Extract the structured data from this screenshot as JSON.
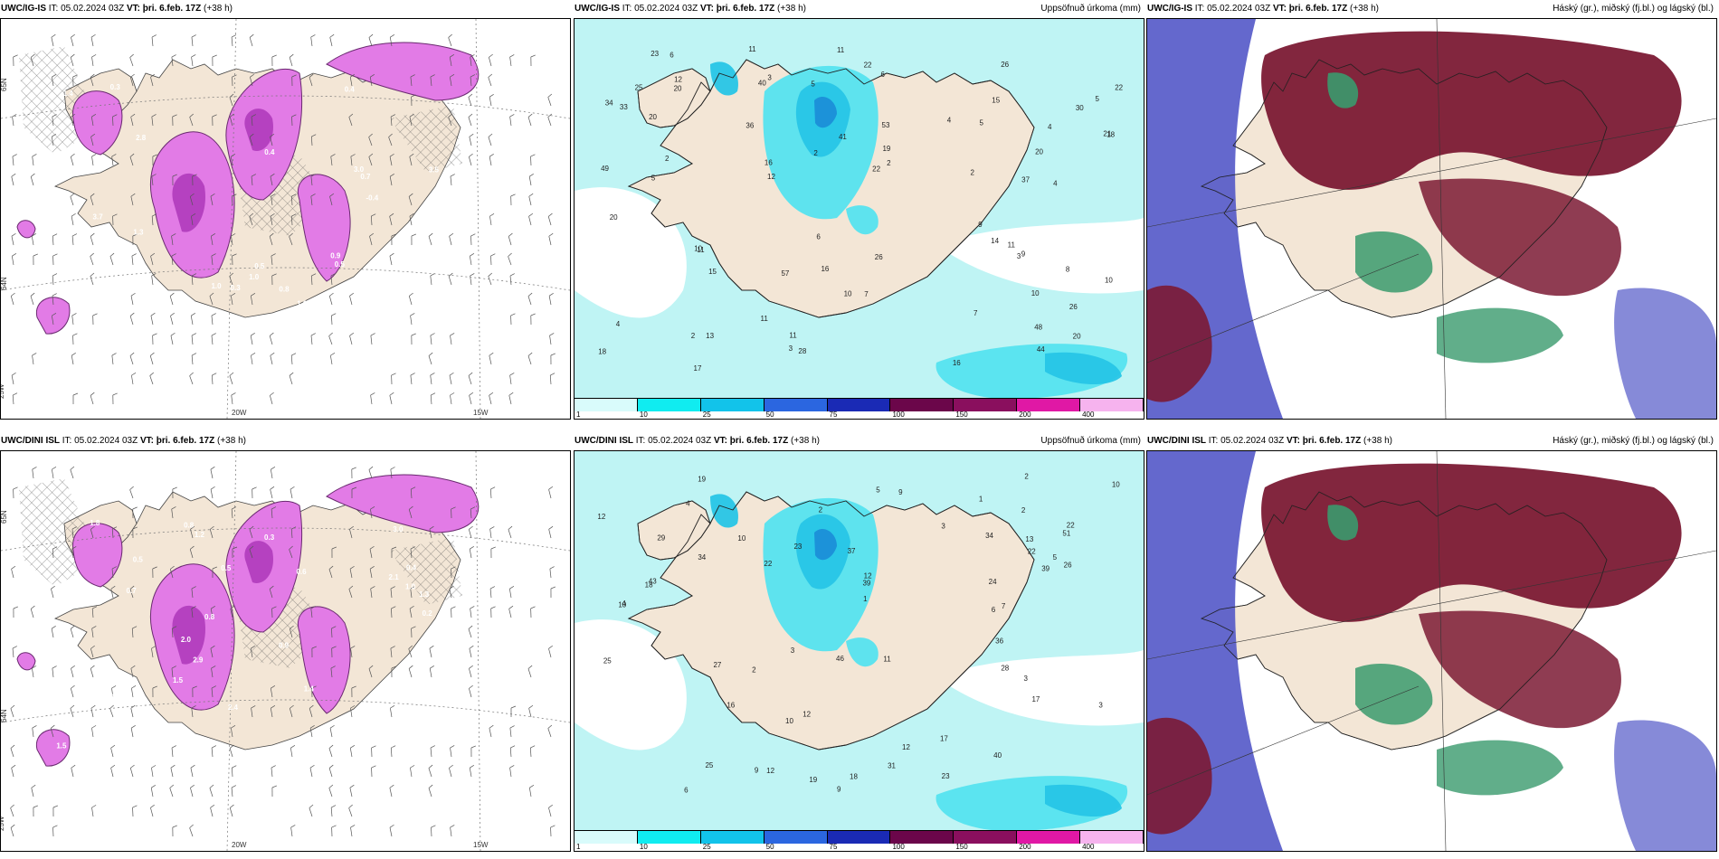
{
  "panels": [
    {
      "model": "UWC/IG-IS",
      "it_prefix": "IT:",
      "it": "05.02.2024 03Z",
      "vt_prefix": "VT:",
      "vt": "þri. 6.feb. 17Z",
      "lead": "(+38 h)",
      "right_title": "",
      "kind": "vort",
      "axis_labels": [
        "20W",
        "15W",
        "65N",
        "64N",
        "25W"
      ],
      "values": [
        "1.0",
        "0.5",
        "0.4",
        "1.4",
        "3.5",
        "2.3",
        "1.0",
        "3.7",
        "3.0",
        "2.8",
        "1.3",
        "2.9",
        "0.3",
        "1.0",
        "0.4",
        "0.8",
        "0.9",
        "0.5",
        "1.5",
        "0.7",
        "0.3",
        "-0.4"
      ]
    },
    {
      "model": "UWC/IG-IS",
      "it_prefix": "IT:",
      "it": "05.02.2024 03Z",
      "vt_prefix": "VT:",
      "vt": "þri. 6.feb. 17Z",
      "lead": "(+38 h)",
      "right_title": "Uppsöfnuð úrkoma (mm)",
      "kind": "precip",
      "colorbar_ticks": [
        "1",
        "10",
        "25",
        "50",
        "75",
        "100",
        "150",
        "200",
        "400"
      ],
      "values": [
        "3",
        "10",
        "11",
        "17",
        "11",
        "6",
        "2",
        "11",
        "22",
        "15",
        "11",
        "18",
        "33",
        "40",
        "48",
        "53",
        "57",
        "30",
        "34",
        "44",
        "26",
        "20",
        "25",
        "20",
        "11",
        "16",
        "15",
        "14",
        "13",
        "18",
        "22",
        "26",
        "12",
        "10",
        "6",
        "22",
        "28",
        "7",
        "5",
        "2",
        "3",
        "10",
        "19",
        "12",
        "2",
        "5",
        "9",
        "5",
        "4",
        "8",
        "6",
        "4",
        "20",
        "11",
        "2",
        "4",
        "21",
        "23",
        "16",
        "49",
        "41",
        "26",
        "36",
        "37",
        "20",
        "20",
        "10",
        "16",
        "9",
        "3",
        "2",
        "7",
        "5",
        "4"
      ]
    },
    {
      "model": "UWC/IG-IS",
      "it_prefix": "IT:",
      "it": "05.02.2024 03Z",
      "vt_prefix": "VT:",
      "vt": "þri. 6.feb. 17Z",
      "lead": "(+38 h)",
      "right_title": "Háský (gr.), miðský (fj.bl.) og lágský (bl.)",
      "kind": "cloud"
    },
    {
      "model": "UWC/DINI ISL",
      "it_prefix": "IT:",
      "it": "05.02.2024 03Z",
      "vt_prefix": "VT:",
      "vt": "þri. 6.feb. 17Z",
      "lead": "(+38 h)",
      "right_title": "",
      "kind": "vort",
      "axis_labels": [
        "20W",
        "15W",
        "65N",
        "64N",
        "25W"
      ],
      "values": [
        "0.2",
        "0.3",
        "2.4",
        "1.4",
        "1.5",
        "2.1",
        "3.0",
        "0.8",
        "2.2",
        "1.5",
        "1.8",
        "2.9",
        "2.0",
        "2.7",
        "1.8",
        "0.5",
        "1.0",
        "0.9",
        "1.3",
        "0.6",
        "0.7",
        "0.4",
        "0.8",
        "0.3",
        "0.5",
        "1.2"
      ]
    },
    {
      "model": "UWC/DINI ISL",
      "it_prefix": "IT:",
      "it": "05.02.2024 03Z",
      "vt_prefix": "VT:",
      "vt": "þri. 6.feb. 17Z",
      "lead": "(+38 h)",
      "right_title": "Uppsöfnuð úrkoma (mm)",
      "kind": "precip",
      "colorbar_ticks": [
        "1",
        "10",
        "25",
        "50",
        "75",
        "100",
        "150",
        "200",
        "400"
      ],
      "values": [
        "10",
        "12",
        "9",
        "6",
        "2",
        "9",
        "10",
        "22",
        "12",
        "18",
        "29",
        "34",
        "51",
        "46",
        "43",
        "23",
        "27",
        "25",
        "40",
        "28",
        "22",
        "39",
        "19",
        "17",
        "16",
        "18",
        "23",
        "22",
        "12",
        "13",
        "10",
        "10",
        "9",
        "7",
        "3",
        "17",
        "3",
        "2",
        "1",
        "1",
        "4",
        "12",
        "19",
        "24",
        "39",
        "25",
        "34",
        "31",
        "26",
        "36",
        "37",
        "11",
        "6",
        "3",
        "5",
        "12",
        "2",
        "4",
        "3",
        "5",
        "2"
      ]
    },
    {
      "model": "UWC/DINI ISL",
      "it_prefix": "IT:",
      "it": "05.02.2024 03Z",
      "vt_prefix": "VT:",
      "vt": "þri. 6.feb. 17Z",
      "lead": "(+38 h)",
      "right_title": "Háský (gr.), miðský (fj.bl.) og lágský (bl.)",
      "kind": "cloud"
    }
  ],
  "colors": {
    "land": "#f3e6d6",
    "vort_light": "#e27be6",
    "vort_mid": "#b541c0",
    "vort_dark": "#6a2a70",
    "precip_bg": "#bff4f4",
    "precip_light": "#55e3ef",
    "precip_mid": "#27c5e6",
    "precip_dark": "#1b8fd8",
    "cloud_high": "#3a9a6d",
    "cloud_mid": "#5358c8",
    "cloud_low": "#7b1a34",
    "colorbar": [
      "#d9fbfb",
      "#10ecf0",
      "#12c3ea",
      "#2b66e0",
      "#1a2ab5",
      "#6b064a",
      "#8a0f5e",
      "#e018a5",
      "#f6b3ee"
    ]
  }
}
